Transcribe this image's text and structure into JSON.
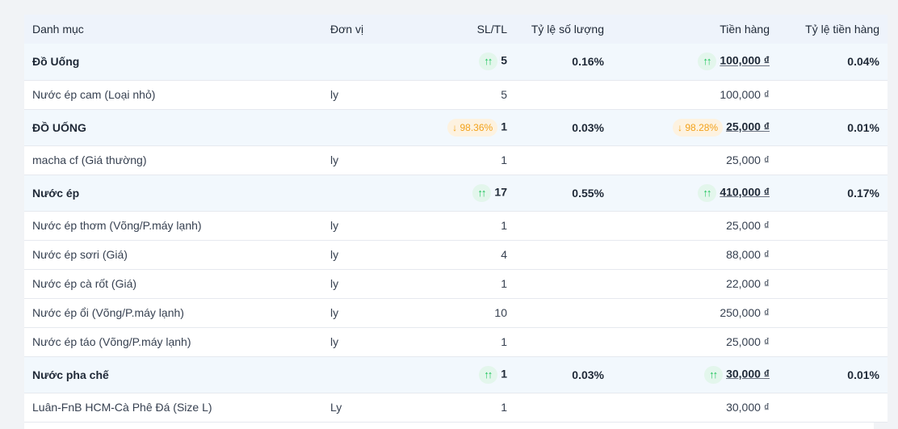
{
  "header": {
    "category": "Danh mục",
    "unit": "Đơn vị",
    "qty": "SL/TL",
    "qty_ratio": "Tỷ lệ số lượng",
    "amount": "Tiền hàng",
    "amount_ratio": "Tỷ lệ tiền hàng"
  },
  "rows": [
    {
      "name": "Đồ Uống",
      "qty_change": "↑↑",
      "qty": "5",
      "qty_ratio": "0.16%",
      "amount_change": "↑↑",
      "amount": "100,000 ₫",
      "amount_ratio": "0.04%"
    },
    {
      "name": "Nước ép cam (Loại nhỏ)",
      "unit": "ly",
      "qty": "5",
      "amount": "100,000 ₫"
    },
    {
      "name": "ĐỒ UỐNG",
      "qty_change": "↓ 98.36%",
      "qty": "1",
      "qty_ratio": "0.03%",
      "amount_change": "↓ 98.28%",
      "amount": "25,000 ₫",
      "amount_ratio": "0.01%"
    },
    {
      "name": "macha cf (Giá thường)",
      "unit": "ly",
      "qty": "1",
      "amount": "25,000 ₫"
    },
    {
      "name": "Nước ép",
      "qty_change": "↑↑",
      "qty": "17",
      "qty_ratio": "0.55%",
      "amount_change": "↑↑",
      "amount": "410,000 ₫",
      "amount_ratio": "0.17%"
    },
    {
      "name": "Nước ép thơm (Võng/P.máy lạnh)",
      "unit": "ly",
      "qty": "1",
      "amount": "25,000 ₫"
    },
    {
      "name": "Nước ép sơri (Giá)",
      "unit": "ly",
      "qty": "4",
      "amount": "88,000 ₫"
    },
    {
      "name": "Nước ép cà rốt (Giá)",
      "unit": "ly",
      "qty": "1",
      "amount": "22,000 ₫"
    },
    {
      "name": "Nước ép ổi (Võng/P.máy lạnh)",
      "unit": "ly",
      "qty": "10",
      "amount": "250,000 ₫"
    },
    {
      "name": "Nước ép táo (Võng/P.máy lạnh)",
      "unit": "ly",
      "qty": "1",
      "amount": "25,000 ₫"
    },
    {
      "name": "Nước pha chế",
      "qty_change": "↑↑",
      "qty": "1",
      "qty_ratio": "0.03%",
      "amount_change": "↑↑",
      "amount": "30,000 ₫",
      "amount_ratio": "0.01%"
    },
    {
      "name": "Luân-FnB HCM-Cà Phê Đá (Size L)",
      "unit": "Ly",
      "qty": "1",
      "amount": "30,000 ₫"
    }
  ]
}
